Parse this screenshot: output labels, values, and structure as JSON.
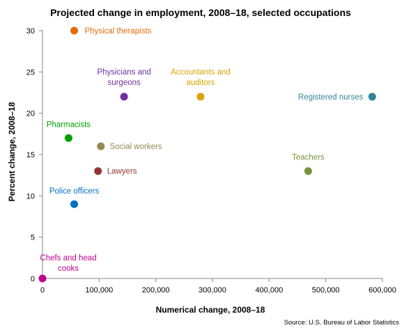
{
  "chart_data": {
    "type": "scatter",
    "title": "Projected change in employment, 2008–18, selected occupations",
    "xlabel": "Numerical change, 2008–18",
    "ylabel": "Percent change, 2008–18",
    "source": "Source: U.S. Bureau of Labor Statistics",
    "xlim": [
      0,
      600000
    ],
    "ylim": [
      0,
      30
    ],
    "xticks": [
      0,
      100000,
      200000,
      300000,
      400000,
      500000,
      600000
    ],
    "xtick_labels": [
      "0",
      "100,000",
      "200,000",
      "300,000",
      "400,000",
      "500,000",
      "600,000"
    ],
    "yticks": [
      0,
      5,
      10,
      15,
      20,
      25,
      30
    ],
    "ytick_labels": [
      "0",
      "5",
      "10",
      "15",
      "20",
      "25",
      "30"
    ],
    "grid": false,
    "points": [
      {
        "label": [
          "Physical therapists"
        ],
        "x": 56000,
        "y": 30,
        "color": "#e36c0a"
      },
      {
        "label": [
          "Physicians and",
          "surgeons"
        ],
        "x": 144000,
        "y": 22,
        "color": "#7030a0"
      },
      {
        "label": [
          "Accountants and",
          "auditors"
        ],
        "x": 279000,
        "y": 22,
        "color": "#d8a600"
      },
      {
        "label": [
          "Registered nurses"
        ],
        "x": 582000,
        "y": 22,
        "color": "#31849b"
      },
      {
        "label": [
          "Pharmacists"
        ],
        "x": 46000,
        "y": 17,
        "color": "#00a000"
      },
      {
        "label": [
          "Social workers"
        ],
        "x": 103000,
        "y": 16,
        "color": "#948a54"
      },
      {
        "label": [
          "Teachers"
        ],
        "x": 469000,
        "y": 13,
        "color": "#77933c"
      },
      {
        "label": [
          "Lawyers"
        ],
        "x": 98000,
        "y": 13,
        "color": "#953735"
      },
      {
        "label": [
          "Police officers"
        ],
        "x": 56000,
        "y": 9,
        "color": "#0070c0"
      },
      {
        "label": [
          "Chefs and head",
          "cooks"
        ],
        "x": 0,
        "y": 0,
        "color": "#c0008c"
      }
    ]
  }
}
